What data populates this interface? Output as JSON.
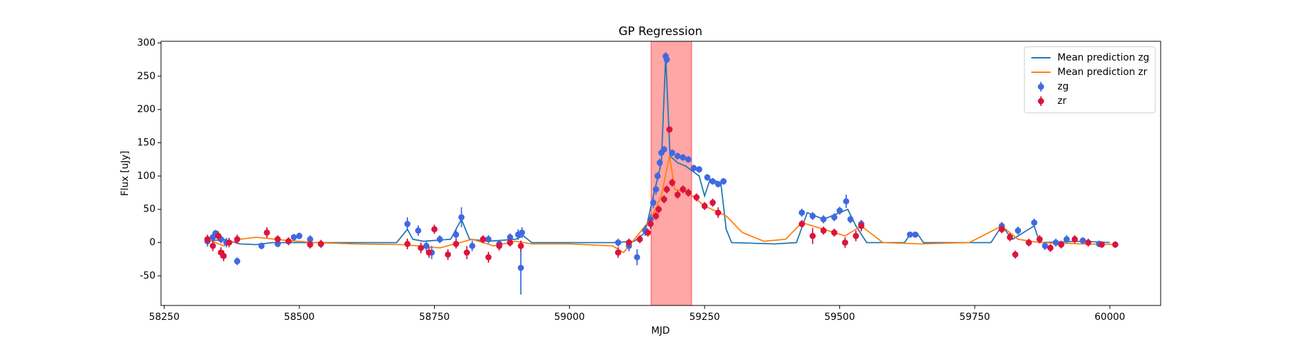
{
  "chart_data": {
    "type": "errorbar",
    "title": "GP Regression",
    "xlabel": "MJD",
    "ylabel": "Flux [uJy]",
    "xlim": [
      58244,
      60094
    ],
    "ylim": [
      -94.5,
      302.5
    ],
    "xticks": [
      58250,
      58500,
      58750,
      59000,
      59250,
      59500,
      59750,
      60000
    ],
    "yticks": [
      -50,
      0,
      50,
      100,
      150,
      200,
      250,
      300
    ],
    "legend": "upper right",
    "spans": [
      {
        "x": [
          59151,
          59226
        ],
        "color": "#ff0000",
        "alpha": 0.35
      }
    ],
    "series": [
      {
        "name": "Mean prediction zg",
        "kind": "line",
        "color": "#1f77b4",
        "x": [
          58330,
          58360,
          58390,
          58420,
          58450,
          58500,
          58600,
          58680,
          58700,
          58710,
          58730,
          58780,
          58800,
          58815,
          58850,
          58900,
          58915,
          58930,
          59000,
          59080,
          59120,
          59140,
          59155,
          59170,
          59178,
          59186,
          59200,
          59215,
          59240,
          59250,
          59260,
          59280,
          59290,
          59300,
          59380,
          59420,
          59440,
          59470,
          59500,
          59515,
          59530,
          59550,
          59620,
          59630,
          59645,
          59655,
          59780,
          59800,
          59820,
          59860,
          59870,
          59950,
          60000
        ],
        "values": [
          2,
          5,
          -2,
          -3,
          0,
          0,
          0,
          0,
          20,
          5,
          2,
          5,
          35,
          5,
          2,
          5,
          10,
          0,
          0,
          0,
          2,
          15,
          70,
          120,
          280,
          130,
          120,
          115,
          100,
          70,
          95,
          90,
          20,
          0,
          -2,
          0,
          45,
          35,
          45,
          50,
          25,
          0,
          0,
          12,
          12,
          0,
          0,
          25,
          5,
          25,
          0,
          2,
          0
        ]
      },
      {
        "name": "Mean prediction zr",
        "kind": "line",
        "color": "#ff7f0e",
        "x": [
          58330,
          58360,
          58390,
          58420,
          58480,
          58530,
          58600,
          58690,
          58720,
          58760,
          58820,
          58860,
          58900,
          58930,
          59000,
          59080,
          59100,
          59120,
          59150,
          59170,
          59185,
          59195,
          59220,
          59250,
          59290,
          59320,
          59360,
          59400,
          59430,
          59470,
          59510,
          59540,
          59580,
          59650,
          59740,
          59800,
          59830,
          59870,
          59950,
          60010
        ],
        "values": [
          5,
          -5,
          5,
          8,
          3,
          0,
          -2,
          -3,
          -5,
          -8,
          5,
          -5,
          2,
          -2,
          -2,
          -5,
          -15,
          5,
          35,
          70,
          130,
          80,
          75,
          55,
          40,
          15,
          2,
          5,
          30,
          20,
          10,
          25,
          0,
          -2,
          0,
          25,
          5,
          0,
          -2,
          -3
        ]
      },
      {
        "name": "zg",
        "kind": "points",
        "color": "#4169e1",
        "x": [
          58330,
          58340,
          58345,
          58355,
          58365,
          58385,
          58430,
          58460,
          58490,
          58500,
          58520,
          58540,
          58700,
          58720,
          58735,
          58745,
          58760,
          58790,
          58800,
          58820,
          58850,
          58870,
          58890,
          58905,
          58910,
          58912,
          59090,
          59110,
          59125,
          59140,
          59150,
          59155,
          59160,
          59163,
          59167,
          59170,
          59175,
          59178,
          59180,
          59190,
          59200,
          59210,
          59220,
          59230,
          59240,
          59255,
          59265,
          59275,
          59285,
          59430,
          59450,
          59470,
          59490,
          59500,
          59512,
          59520,
          59540,
          59630,
          59640,
          59800,
          59830,
          59860,
          59880,
          59900,
          59920,
          59950,
          59980
        ],
        "values": [
          2,
          8,
          14,
          5,
          0,
          -28,
          -5,
          -2,
          8,
          10,
          5,
          -2,
          28,
          18,
          -5,
          -15,
          5,
          12,
          38,
          -5,
          5,
          -2,
          8,
          12,
          -38,
          15,
          0,
          -5,
          -22,
          18,
          35,
          60,
          80,
          100,
          120,
          135,
          140,
          280,
          275,
          135,
          130,
          128,
          125,
          112,
          110,
          98,
          92,
          88,
          92,
          45,
          40,
          35,
          38,
          48,
          62,
          35,
          28,
          12,
          12,
          25,
          18,
          30,
          -5,
          0,
          5,
          3,
          -2
        ],
        "errors": [
          8,
          6,
          5,
          6,
          7,
          6,
          5,
          5,
          5,
          5,
          6,
          6,
          10,
          8,
          8,
          10,
          6,
          8,
          15,
          8,
          6,
          6,
          6,
          8,
          40,
          8,
          6,
          8,
          12,
          8,
          8,
          8,
          8,
          6,
          6,
          6,
          5,
          6,
          6,
          5,
          5,
          5,
          5,
          5,
          5,
          5,
          5,
          5,
          5,
          6,
          6,
          6,
          6,
          6,
          10,
          6,
          6,
          4,
          4,
          6,
          6,
          6,
          6,
          6,
          6,
          5,
          5
        ]
      },
      {
        "name": "zr",
        "kind": "points",
        "color": "#dc143c",
        "x": [
          58330,
          58340,
          58350,
          58355,
          58360,
          58370,
          58385,
          58440,
          58460,
          58480,
          58520,
          58540,
          58700,
          58725,
          58740,
          58750,
          58775,
          58790,
          58810,
          58840,
          58850,
          58870,
          58890,
          58910,
          59090,
          59110,
          59130,
          59145,
          59150,
          59160,
          59165,
          59175,
          59180,
          59185,
          59190,
          59200,
          59210,
          59220,
          59235,
          59250,
          59265,
          59275,
          59430,
          59450,
          59470,
          59490,
          59510,
          59530,
          59540,
          59800,
          59815,
          59825,
          59850,
          59870,
          59890,
          59910,
          59935,
          59960,
          59985,
          60010
        ],
        "values": [
          5,
          -5,
          10,
          -15,
          -20,
          0,
          5,
          15,
          5,
          2,
          -3,
          -2,
          -2,
          -8,
          -15,
          20,
          -18,
          -2,
          -15,
          5,
          -22,
          -5,
          0,
          -5,
          -15,
          0,
          5,
          15,
          28,
          40,
          50,
          65,
          80,
          170,
          90,
          72,
          80,
          75,
          68,
          55,
          60,
          45,
          28,
          10,
          18,
          15,
          0,
          10,
          25,
          20,
          8,
          -18,
          0,
          5,
          -8,
          -3,
          5,
          0,
          -3,
          -3
        ],
        "errors": [
          7,
          8,
          7,
          8,
          8,
          7,
          7,
          8,
          6,
          6,
          6,
          6,
          8,
          8,
          8,
          7,
          8,
          7,
          10,
          6,
          8,
          7,
          6,
          8,
          8,
          6,
          6,
          6,
          8,
          6,
          6,
          6,
          6,
          5,
          6,
          6,
          6,
          6,
          6,
          6,
          6,
          8,
          6,
          12,
          6,
          6,
          8,
          8,
          8,
          6,
          6,
          6,
          6,
          6,
          6,
          6,
          6,
          6,
          5,
          5
        ]
      }
    ]
  }
}
